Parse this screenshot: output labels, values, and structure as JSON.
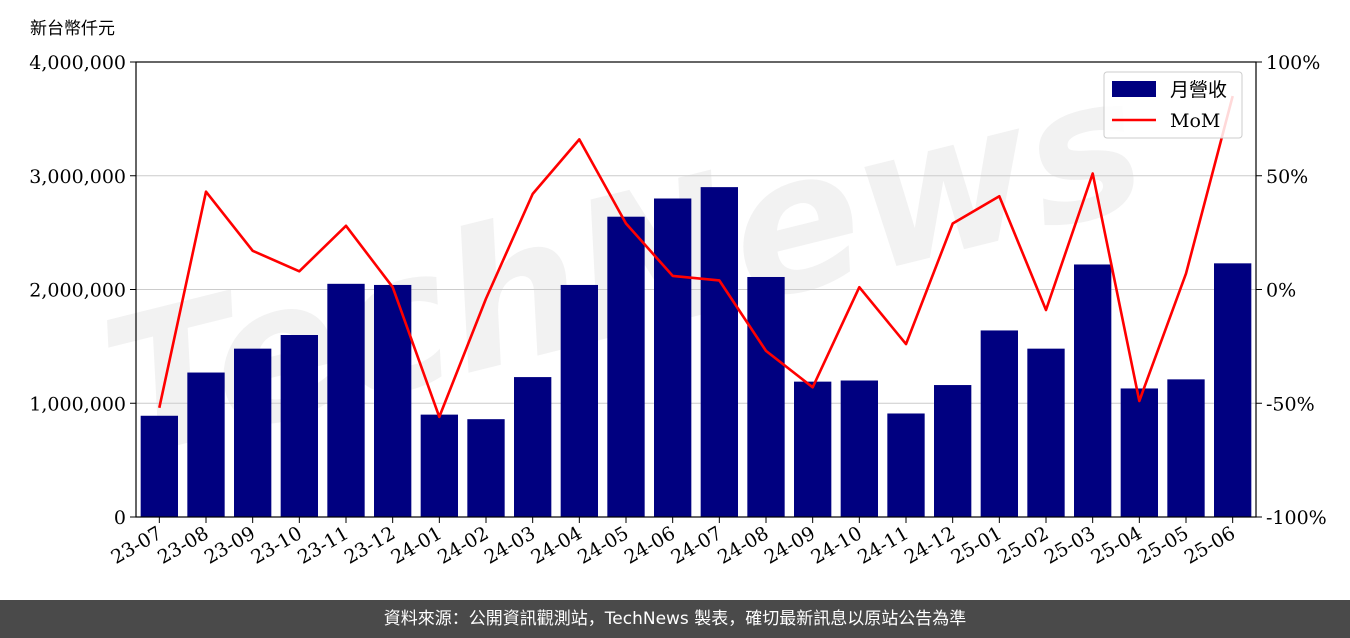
{
  "chart_data": {
    "type": "bar",
    "unit_label": "新台幣仟元",
    "categories": [
      "23-07",
      "23-08",
      "23-09",
      "23-10",
      "23-11",
      "23-12",
      "24-01",
      "24-02",
      "24-03",
      "24-04",
      "24-05",
      "24-06",
      "24-07",
      "24-08",
      "24-09",
      "24-10",
      "24-11",
      "24-12",
      "25-01",
      "25-02",
      "25-03",
      "25-04",
      "25-05",
      "25-06"
    ],
    "series": [
      {
        "name": "月營收",
        "type": "bar",
        "axis": "left",
        "color": "#000080",
        "values": [
          890000,
          1270000,
          1480000,
          1600000,
          2050000,
          2040000,
          900000,
          860000,
          1230000,
          2040000,
          2640000,
          2800000,
          2900000,
          2110000,
          1190000,
          1200000,
          910000,
          1160000,
          1640000,
          1480000,
          2220000,
          1130000,
          1210000,
          2230000
        ]
      },
      {
        "name": "MoM",
        "type": "line",
        "axis": "right",
        "color": "#ff0000",
        "values": [
          -52,
          43,
          17,
          8,
          28,
          1,
          -56,
          -4,
          42,
          66,
          29,
          6,
          4,
          -27,
          -43,
          1,
          -24,
          29,
          41,
          -9,
          51,
          -49,
          7,
          85
        ]
      }
    ],
    "ylim_left": [
      0,
      4000000
    ],
    "yticks_left": [
      "0",
      "1,000,000",
      "2,000,000",
      "3,000,000",
      "4,000,000"
    ],
    "ylim_right": [
      -100,
      100
    ],
    "yticks_right": [
      "-100%",
      "-50%",
      "0%",
      "50%",
      "100%"
    ],
    "grid": true,
    "legend_position": "top-right",
    "watermark": "TechNews"
  },
  "footer": {
    "text": "資料來源：公開資訊觀測站，TechNews 製表，確切最新訊息以原站公告為準"
  }
}
